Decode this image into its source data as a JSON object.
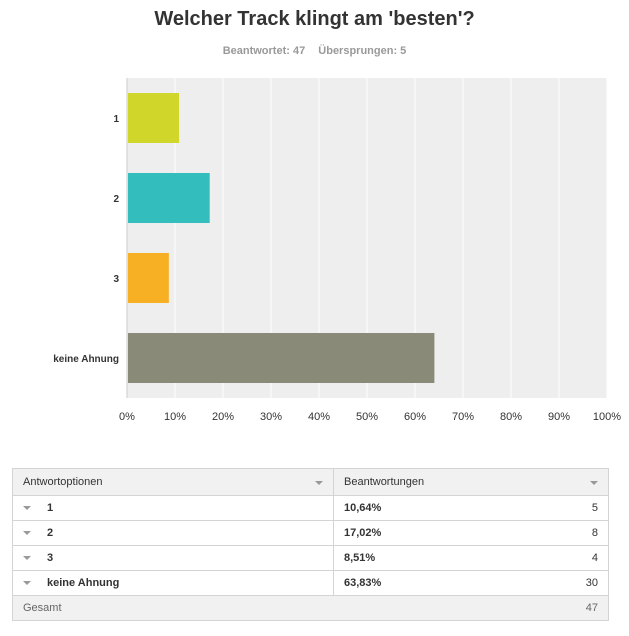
{
  "title": "Welcher Track klingt am 'besten'?",
  "stats": {
    "answered": "Beantwortet: 47",
    "skipped": "Übersprungen: 5"
  },
  "chart_data": {
    "type": "bar",
    "orientation": "horizontal",
    "categories": [
      "1",
      "2",
      "3",
      "keine Ahnung"
    ],
    "values": [
      10.64,
      17.02,
      8.51,
      63.83
    ],
    "colors": [
      "#d0d72a",
      "#34bdbd",
      "#f7b023",
      "#8a8a78"
    ],
    "xlim": [
      0,
      100
    ],
    "xticks": [
      "0%",
      "10%",
      "20%",
      "30%",
      "40%",
      "50%",
      "60%",
      "70%",
      "80%",
      "90%",
      "100%"
    ],
    "grid": true
  },
  "table": {
    "headers": [
      "Antwortoptionen",
      "Beantwortungen"
    ],
    "rows": [
      {
        "option": "1",
        "percent": "10,64%",
        "count": "5"
      },
      {
        "option": "2",
        "percent": "17,02%",
        "count": "8"
      },
      {
        "option": "3",
        "percent": "8,51%",
        "count": "4"
      },
      {
        "option": "keine Ahnung",
        "percent": "63,83%",
        "count": "30"
      }
    ],
    "total_label": "Gesamt",
    "total_count": "47"
  }
}
